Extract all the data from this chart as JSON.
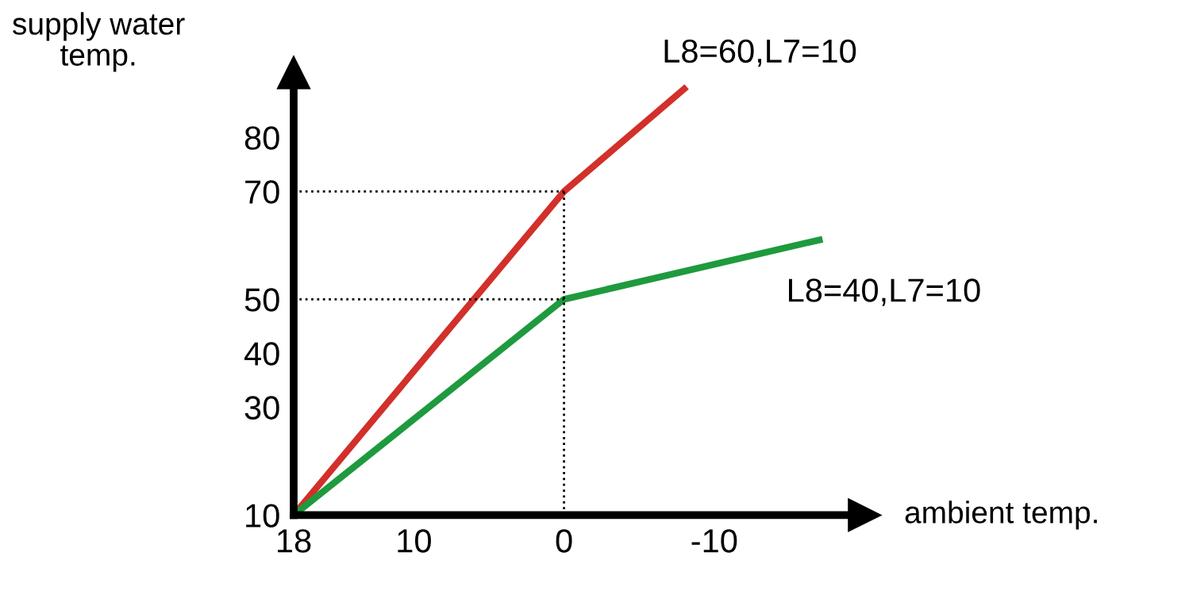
{
  "chart_data": {
    "type": "line",
    "xlabel": "ambient temp.",
    "ylabel": "supply water\ntemp.",
    "xlim": [
      18,
      -20
    ],
    "ylim": [
      10,
      92
    ],
    "xticks": [
      18,
      10,
      0,
      -10
    ],
    "yticks": [
      10,
      30,
      40,
      50,
      70,
      80
    ],
    "series": [
      {
        "name": "L8=60,L7=10",
        "color": "#d2302a",
        "x": [
          18,
          0,
          -8
        ],
        "values": [
          10,
          70,
          89
        ]
      },
      {
        "name": "L8=40,L7=10",
        "color": "#1f9a3e",
        "x": [
          18,
          0,
          -17
        ],
        "values": [
          10,
          50,
          61
        ]
      }
    ],
    "ref_lines": [
      {
        "axis": "x",
        "value": 0,
        "line_style": "dotted",
        "color": "#000000"
      },
      {
        "axis": "y",
        "value": 70,
        "line_style": "dotted",
        "color": "#000000"
      },
      {
        "axis": "y",
        "value": 50,
        "line_style": "dotted",
        "color": "#000000"
      }
    ],
    "grid": false,
    "legend": false,
    "marker": "none",
    "line_style": "solid"
  }
}
